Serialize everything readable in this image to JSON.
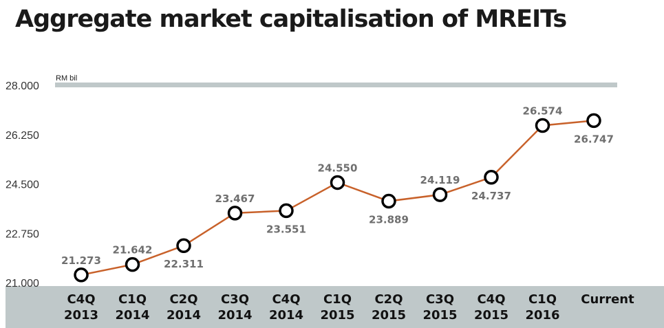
{
  "chart_data": {
    "type": "line",
    "title": "Aggregate market capitalisation of MREITs",
    "unit_label": "RM bil",
    "ylim": [
      21.0,
      28.0
    ],
    "yticks": [
      "21.000",
      "22.750",
      "24.500",
      "26.250",
      "28.000"
    ],
    "yticks_values": [
      21.0,
      22.75,
      24.5,
      26.25,
      28.0
    ],
    "categories": [
      [
        "C4Q",
        "2013"
      ],
      [
        "C1Q",
        "2014"
      ],
      [
        "C2Q",
        "2014"
      ],
      [
        "C3Q",
        "2014"
      ],
      [
        "C4Q",
        "2014"
      ],
      [
        "C1Q",
        "2015"
      ],
      [
        "C2Q",
        "2015"
      ],
      [
        "C3Q",
        "2015"
      ],
      [
        "C4Q",
        "2015"
      ],
      [
        "C1Q",
        "2016"
      ],
      [
        "Current"
      ]
    ],
    "values": [
      21.273,
      21.642,
      22.311,
      23.467,
      23.551,
      24.55,
      23.889,
      24.119,
      24.737,
      26.574,
      26.747
    ],
    "value_labels": [
      "21.273",
      "21.642",
      "22.311",
      "23.467",
      "23.551",
      "24.550",
      "23.889",
      "24.119",
      "24.737",
      "26.574",
      "26.747"
    ],
    "label_positions": [
      "above",
      "above",
      "below",
      "above",
      "below",
      "above",
      "below",
      "above",
      "below",
      "above",
      "below"
    ],
    "line_color": "#c8612a",
    "marker_edge_color": "#000000",
    "gridline_color": "#bfc8c9",
    "axis_band_color": "#bfc8c9",
    "grid": false
  }
}
